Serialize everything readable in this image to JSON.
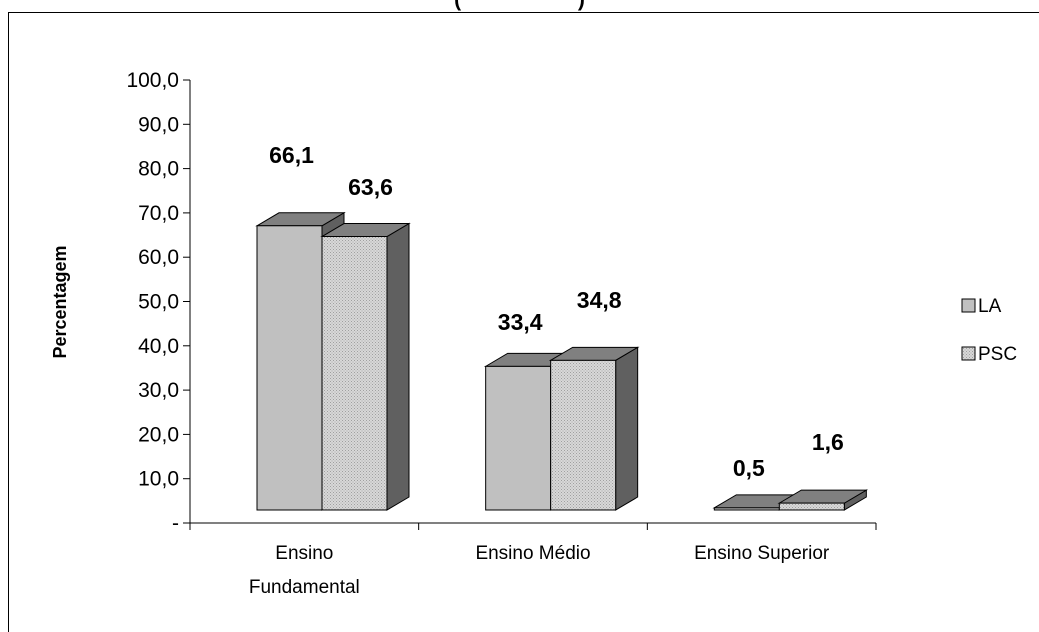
{
  "chart_data": {
    "type": "bar",
    "title_fragment": "(                    )",
    "ylabel": "Percentagem",
    "xlabel": "",
    "categories": [
      [
        "Ensino",
        "Fundamental"
      ],
      [
        "Ensino Médio"
      ],
      [
        "Ensino Superior"
      ]
    ],
    "series": [
      {
        "name": "LA",
        "values": [
          66.1,
          33.4,
          0.5
        ],
        "labels": [
          "66,1",
          "33,4",
          "0,5"
        ],
        "color": "#c0c0c0"
      },
      {
        "name": "PSC",
        "values": [
          63.6,
          34.8,
          1.6
        ],
        "labels": [
          "63,6",
          "34,8",
          "1,6"
        ],
        "color": "#d4d4d4"
      }
    ],
    "ylim": [
      0,
      100
    ],
    "yticks": [
      0,
      10,
      20,
      30,
      40,
      50,
      60,
      70,
      80,
      90,
      100
    ],
    "ytick_labels": [
      "-",
      "10,0",
      "20,0",
      "30,0",
      "40,0",
      "50,0",
      "60,0",
      "70,0",
      "80,0",
      "90,0",
      "100,0"
    ],
    "grid": false,
    "legend_position": "right",
    "bar_style": "3d",
    "side_color": "#606060",
    "top_color": "#808080"
  }
}
